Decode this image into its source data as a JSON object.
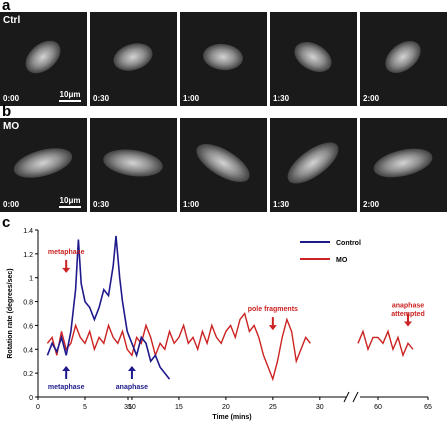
{
  "panels": {
    "a": {
      "letter": "a",
      "condition": "Ctrl",
      "scale_label": "10μm",
      "frames": [
        "0:00",
        "0:30",
        "1:00",
        "1:30",
        "2:00"
      ]
    },
    "b": {
      "letter": "b",
      "condition": "MO",
      "scale_label": "10μm",
      "frames": [
        "0:00",
        "0:30",
        "1:00",
        "1:30",
        "2:00"
      ]
    },
    "c": {
      "letter": "c"
    }
  },
  "chart_data": {
    "type": "line",
    "xlabel": "Time (mins)",
    "ylabel": "Rotation rate (degrees/sec)",
    "ylim": [
      0,
      1.4
    ],
    "yticks": [
      "0",
      "0.2",
      "0.4",
      "0.6",
      "0.8",
      "1",
      "1.2",
      "1.4"
    ],
    "xticks": [
      "0",
      "5",
      "10",
      "15",
      "20",
      "25",
      "30",
      "35",
      "60",
      "65"
    ],
    "x_axis_break": [
      33,
      58
    ],
    "legend_position": "top-right",
    "series": [
      {
        "name": "Control",
        "color": "#1f1a8c",
        "x": [
          1,
          1.5,
          2,
          2.5,
          3,
          3.5,
          4,
          4.3,
          4.6,
          5,
          5.5,
          6,
          6.5,
          7,
          7.5,
          8,
          8.3,
          8.7,
          9,
          9.5,
          10,
          10.5,
          11,
          11.5,
          12,
          12.5,
          13,
          13.5,
          14
        ],
        "y": [
          0.35,
          0.45,
          0.38,
          0.5,
          0.35,
          0.55,
          0.9,
          1.32,
          0.95,
          0.8,
          0.75,
          0.65,
          0.75,
          0.9,
          0.85,
          1.1,
          1.35,
          1.0,
          0.8,
          0.55,
          0.45,
          0.35,
          0.5,
          0.45,
          0.3,
          0.35,
          0.25,
          0.2,
          0.15
        ]
      },
      {
        "name": "MO",
        "color": "#cc2222",
        "segments": [
          {
            "x": [
              1,
              1.5,
              2,
              2.5,
              3,
              3.5,
              4,
              4.5,
              5,
              5.5,
              6,
              6.5,
              7,
              7.5,
              8,
              8.5,
              9,
              9.5,
              10,
              10.5,
              11,
              11.5,
              12,
              12.5,
              13,
              13.5,
              14,
              14.5,
              15,
              15.5,
              16,
              16.5,
              17,
              17.5,
              18,
              18.5,
              19,
              19.5,
              20,
              20.5,
              21,
              21.5,
              22,
              22.5,
              23,
              23.5,
              24,
              24.5,
              25,
              25.5,
              26,
              26.5,
              27,
              27.5,
              28,
              28.5,
              29
            ],
            "y": [
              0.45,
              0.5,
              0.35,
              0.55,
              0.4,
              0.45,
              0.6,
              0.5,
              0.45,
              0.55,
              0.4,
              0.5,
              0.45,
              0.6,
              0.5,
              0.45,
              0.55,
              0.4,
              0.35,
              0.5,
              0.45,
              0.6,
              0.5,
              0.35,
              0.45,
              0.4,
              0.55,
              0.45,
              0.5,
              0.6,
              0.45,
              0.5,
              0.4,
              0.55,
              0.45,
              0.6,
              0.5,
              0.45,
              0.55,
              0.6,
              0.5,
              0.65,
              0.7,
              0.55,
              0.6,
              0.5,
              0.35,
              0.25,
              0.15,
              0.3,
              0.5,
              0.65,
              0.55,
              0.3,
              0.4,
              0.5,
              0.45
            ]
          },
          {
            "x": [
              58,
              58.5,
              59,
              59.5,
              60,
              60.5,
              61,
              61.5,
              62,
              62.5,
              63,
              63.5
            ],
            "y": [
              0.45,
              0.55,
              0.4,
              0.5,
              0.5,
              0.45,
              0.55,
              0.4,
              0.5,
              0.35,
              0.45,
              0.4
            ]
          }
        ]
      }
    ],
    "annotations": [
      {
        "text": "metaphase",
        "color": "#cc2222",
        "x": 3,
        "y": 1.2,
        "direction": "down"
      },
      {
        "text": "metaphase",
        "color": "#1f1a8c",
        "x": 3,
        "y": 0.2,
        "direction": "up"
      },
      {
        "text": "anaphase",
        "color": "#1f1a8c",
        "x": 10,
        "y": 0.2,
        "direction": "up"
      },
      {
        "text": "pole fragments",
        "color": "#cc2222",
        "x": 25,
        "y": 0.72,
        "direction": "down"
      },
      {
        "text": "anaphase",
        "color": "#cc2222",
        "x": 63,
        "y": 0.75,
        "direction": "down"
      },
      {
        "text": "attempted",
        "color": "#cc2222",
        "x": 63,
        "y": 0.68,
        "direction": "none"
      }
    ]
  }
}
